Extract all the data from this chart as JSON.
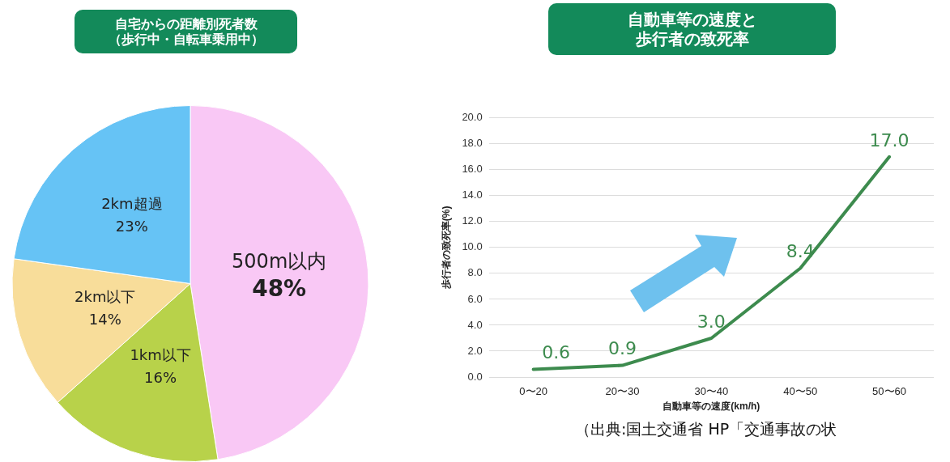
{
  "chart_data": [
    {
      "type": "pie",
      "title": "自宅からの距離別死者数",
      "subtitle": "（歩行中・自転車乗用中）",
      "categories": [
        "500m以内",
        "1km以下",
        "2km以下",
        "2km超過"
      ],
      "values": [
        48,
        16,
        14,
        23
      ],
      "colors": [
        "#f9c8f5",
        "#b8d24a",
        "#f8dd9a",
        "#66c3f5"
      ],
      "value_labels": [
        "48%",
        "16%",
        "14%",
        "23%"
      ],
      "legend": false
    },
    {
      "type": "line",
      "title": "自動車等の速度と",
      "subtitle": "歩行者の致死率",
      "xlabel": "自動車等の速度(km/h)",
      "ylabel": "歩行者の致死率(%)",
      "categories": [
        "0〜20",
        "20〜30",
        "30〜40",
        "40〜50",
        "50〜60"
      ],
      "series": [
        {
          "color": "#3d8b4e",
          "values": [
            0.6,
            0.9,
            3.0,
            8.4,
            17.0
          ],
          "value_labels": [
            "0.6",
            "0.9",
            "3.0",
            "8.4",
            "17.0"
          ]
        }
      ],
      "ylim": [
        0,
        20
      ],
      "yticks": [
        {
          "value": 0,
          "label": "0.0"
        },
        {
          "value": 2,
          "label": "2.0"
        },
        {
          "value": 4,
          "label": "4.0"
        },
        {
          "value": 6,
          "label": "6.0"
        },
        {
          "value": 8,
          "label": "8.0"
        },
        {
          "value": 10,
          "label": "10.0"
        },
        {
          "value": 12,
          "label": "12.0"
        },
        {
          "value": 14,
          "label": "14.0"
        },
        {
          "value": 16,
          "label": "16.0"
        },
        {
          "value": 18,
          "label": "18.0"
        },
        {
          "value": 20,
          "label": "20.0"
        }
      ],
      "grid": "y",
      "legend": false,
      "marker": "none",
      "line_style": "solid",
      "annotations": [
        "（出典:国土交通省 HP「交通事故の状"
      ]
    }
  ]
}
